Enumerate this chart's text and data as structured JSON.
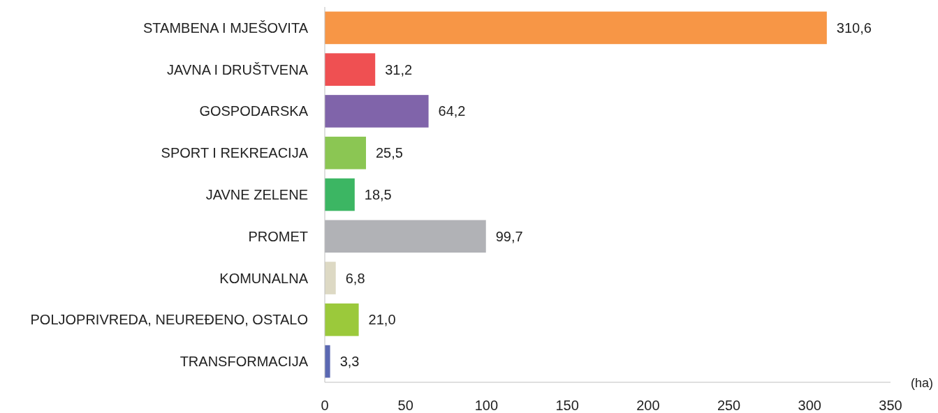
{
  "chart_data": {
    "type": "bar",
    "orientation": "horizontal",
    "xlabel": "(ha)",
    "categories": [
      "STAMBENA I MJEŠOVITA",
      "JAVNA I DRUŠTVENA",
      "GOSPODARSKA",
      "SPORT I REKREACIJA",
      "JAVNE ZELENE",
      "PROMET",
      "KOMUNALNA",
      "POLJOPRIVREDA, NEUREĐENO, OSTALO",
      "TRANSFORMACIJA"
    ],
    "values": [
      310.6,
      31.2,
      64.2,
      25.5,
      18.5,
      99.7,
      6.8,
      21.0,
      3.3
    ],
    "value_labels": [
      "310,6",
      "31,2",
      "64,2",
      "25,5",
      "18,5",
      "99,7",
      "6,8",
      "21,0",
      "3,3"
    ],
    "colors": [
      "#f79646",
      "#ef5052",
      "#8064aa",
      "#8bc653",
      "#3cb663",
      "#b1b2b6",
      "#ddd9c4",
      "#9bc93b",
      "#5b68b2"
    ],
    "xlim": [
      0,
      350
    ],
    "xticks": [
      0,
      50,
      100,
      150,
      200,
      250,
      300,
      350
    ],
    "grid": false
  }
}
